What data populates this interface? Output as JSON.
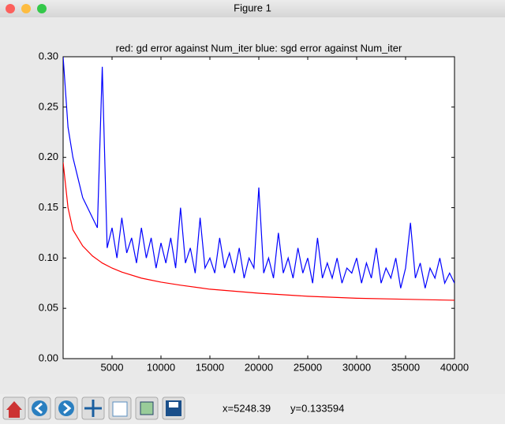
{
  "window": {
    "title": "Figure 1"
  },
  "chart_data": {
    "type": "line",
    "title": "red: gd error against Num_iter  blue: sgd error against Num_iter",
    "xlim": [
      0,
      40000
    ],
    "xticks": [
      5000,
      10000,
      15000,
      20000,
      25000,
      30000,
      35000,
      40000
    ],
    "ylim": [
      0,
      0.3
    ],
    "yticks": [
      {
        "value": 0,
        "label": "0.00"
      },
      0.05,
      {
        "value": 0.1,
        "label": "0.10"
      },
      0.15,
      {
        "value": 0.2,
        "label": "0.20"
      },
      0.25,
      {
        "value": 0.3,
        "label": "0.30"
      }
    ],
    "series": [
      {
        "color": "#ff0000",
        "x": [
          0,
          500,
          1000,
          2000,
          3000,
          4000,
          5000,
          6000,
          8000,
          10000,
          12000,
          15000,
          20000,
          25000,
          30000,
          35000,
          40000
        ],
        "values": [
          0.195,
          0.15,
          0.128,
          0.112,
          0.102,
          0.095,
          0.09,
          0.086,
          0.08,
          0.076,
          0.073,
          0.069,
          0.065,
          0.062,
          0.06,
          0.059,
          0.058
        ]
      },
      {
        "color": "#0000ff",
        "x": [
          0,
          500,
          1000,
          1500,
          2000,
          2500,
          3000,
          3500,
          4000,
          4500,
          5000,
          5500,
          6000,
          6500,
          7000,
          7500,
          8000,
          8500,
          9000,
          9500,
          10000,
          10500,
          11000,
          11500,
          12000,
          12500,
          13000,
          13500,
          14000,
          14500,
          15000,
          15500,
          16000,
          16500,
          17000,
          17500,
          18000,
          18500,
          19000,
          19500,
          20000,
          20500,
          21000,
          21500,
          22000,
          22500,
          23000,
          23500,
          24000,
          24500,
          25000,
          25500,
          26000,
          26500,
          27000,
          27500,
          28000,
          28500,
          29000,
          29500,
          30000,
          30500,
          31000,
          31500,
          32000,
          32500,
          33000,
          33500,
          34000,
          34500,
          35000,
          35500,
          36000,
          36500,
          37000,
          37500,
          38000,
          38500,
          39000,
          39500,
          40000
        ],
        "values": [
          0.3,
          0.23,
          0.2,
          0.18,
          0.16,
          0.15,
          0.14,
          0.13,
          0.29,
          0.11,
          0.13,
          0.1,
          0.14,
          0.105,
          0.12,
          0.095,
          0.13,
          0.1,
          0.12,
          0.09,
          0.115,
          0.095,
          0.12,
          0.09,
          0.15,
          0.095,
          0.11,
          0.085,
          0.14,
          0.09,
          0.1,
          0.085,
          0.12,
          0.09,
          0.105,
          0.085,
          0.11,
          0.08,
          0.1,
          0.09,
          0.17,
          0.085,
          0.1,
          0.08,
          0.125,
          0.085,
          0.1,
          0.08,
          0.11,
          0.085,
          0.1,
          0.075,
          0.12,
          0.08,
          0.095,
          0.08,
          0.1,
          0.075,
          0.09,
          0.085,
          0.1,
          0.075,
          0.095,
          0.08,
          0.11,
          0.075,
          0.09,
          0.08,
          0.1,
          0.07,
          0.09,
          0.135,
          0.08,
          0.095,
          0.07,
          0.09,
          0.08,
          0.1,
          0.075,
          0.085,
          0.075
        ]
      }
    ]
  },
  "status": {
    "x": "x=5248.39",
    "y": "y=0.133594"
  }
}
